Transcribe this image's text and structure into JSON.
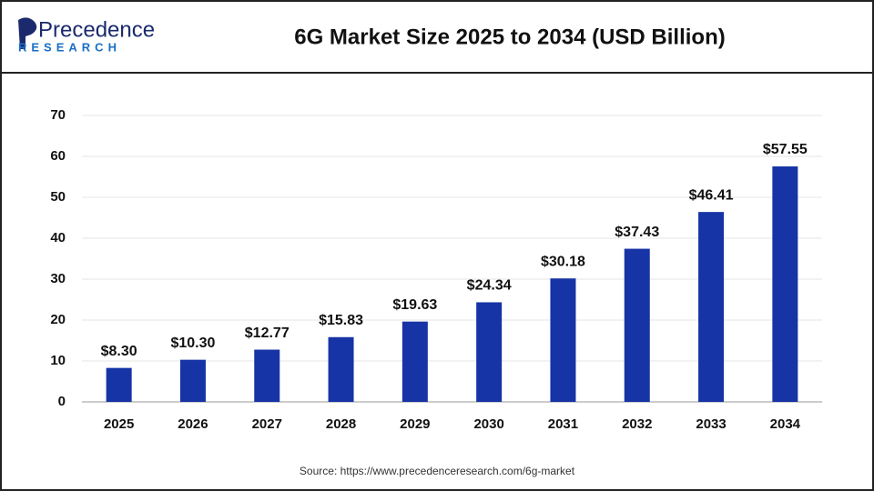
{
  "logo": {
    "name": "Precedence",
    "tagline": "RESEARCH"
  },
  "chart_data": {
    "type": "bar",
    "title": "6G Market Size 2025 to 2034 (USD Billion)",
    "categories": [
      "2025",
      "2026",
      "2027",
      "2028",
      "2029",
      "2030",
      "2031",
      "2032",
      "2033",
      "2034"
    ],
    "values": [
      8.3,
      10.3,
      12.77,
      15.83,
      19.63,
      24.34,
      30.18,
      37.43,
      46.41,
      57.55
    ],
    "value_labels": [
      "$8.30",
      "$10.30",
      "$12.77",
      "$15.83",
      "$19.63",
      "$24.34",
      "$30.18",
      "$37.43",
      "$46.41",
      "$57.55"
    ],
    "color": "#1634a5",
    "ylim": [
      0,
      70
    ],
    "yticks": [
      0,
      10,
      20,
      30,
      40,
      50,
      60,
      70
    ],
    "grid": true,
    "source": "Source: https://www.precedenceresearch.com/6g-market"
  }
}
